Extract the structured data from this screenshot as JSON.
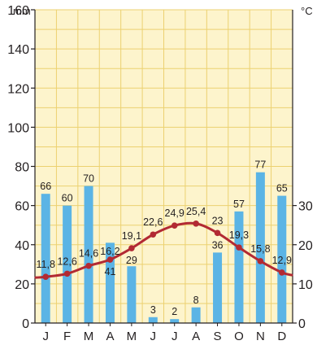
{
  "chart_data": {
    "type": "bar",
    "categories": [
      "J",
      "F",
      "M",
      "A",
      "M",
      "J",
      "J",
      "A",
      "S",
      "O",
      "N",
      "D"
    ],
    "series": [
      {
        "axis": "left",
        "type": "bar",
        "values": [
          66,
          60,
          70,
          41,
          29,
          3,
          2,
          8,
          36,
          57,
          77,
          65
        ],
        "value_labels": [
          "66",
          "60",
          "70",
          "41",
          "29",
          "3",
          "2",
          "8",
          "36",
          "57",
          "77",
          "65"
        ],
        "color": "#5bb4e5"
      },
      {
        "axis": "right",
        "type": "line",
        "values": [
          11.8,
          12.6,
          14.6,
          16.2,
          19.1,
          22.6,
          24.9,
          25.4,
          23,
          19.3,
          15.8,
          12.9
        ],
        "value_labels": [
          "11,8",
          "12,6",
          "14,6",
          "16,2",
          "19,1",
          "22,6",
          "24,9",
          "25,4",
          "23",
          "19,3",
          "15,8",
          "12,9"
        ],
        "color": "#b22a33"
      }
    ],
    "left_axis": {
      "unit": "mm",
      "ylim": [
        0,
        160
      ],
      "ticks": [
        0,
        20,
        40,
        60,
        80,
        100,
        120,
        140,
        160
      ],
      "tick_labels": [
        "0",
        "20",
        "40",
        "60",
        "80",
        "100",
        "120",
        "140",
        "160"
      ]
    },
    "right_axis": {
      "unit": "°C",
      "ylim": [
        0,
        80
      ],
      "ticks": [
        0,
        10,
        20,
        30
      ],
      "tick_labels": [
        "0",
        "10",
        "20",
        "30"
      ]
    },
    "grid": true,
    "background_color": "#fdf4cc",
    "grid_color": "#ecd170"
  }
}
